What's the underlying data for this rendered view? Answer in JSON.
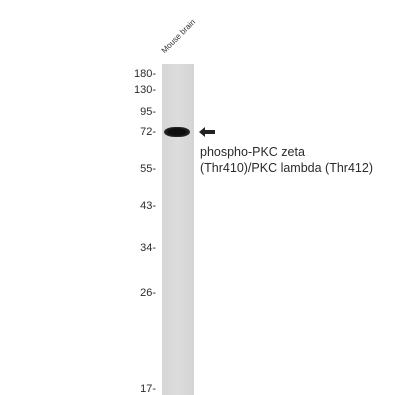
{
  "blot": {
    "lane_label": "Mouse brain",
    "target_label_line1": "phospho-PKC zeta",
    "target_label_line2": "(Thr410)/PKC lambda (Thr412)",
    "markers": [
      "180-",
      "130-",
      "95-",
      "72-",
      "55-",
      "43-",
      "34-",
      "26-",
      "17-"
    ],
    "arrow_icon": "left-arrow-icon",
    "lane_color": "#d8d8d8",
    "band_color": "#111111"
  }
}
